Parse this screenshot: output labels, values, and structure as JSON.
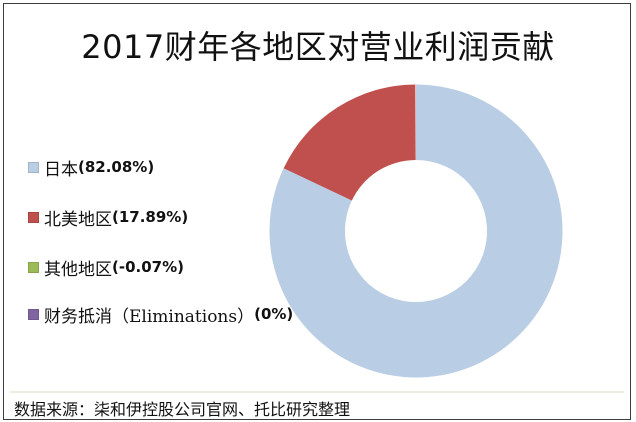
{
  "title": "2017财年各地区对营业利润贡献",
  "source_note": "数据来源：柒和伊控股公司官网、托比研究整理",
  "legend": {
    "items": [
      {
        "name": "日本",
        "pct": "(82.08%)",
        "color": "#B9CDE5"
      },
      {
        "name": "北美地区",
        "pct": "(17.89%)",
        "color": "#C0504D"
      },
      {
        "name": "其他地区",
        "pct": "(-0.07%)",
        "color": "#9BBB59"
      },
      {
        "name": "财务抵消（Eliminations）",
        "pct": "(0%)",
        "color": "#8064A2"
      }
    ]
  },
  "chart_data": {
    "type": "pie",
    "subtype": "donut",
    "title": "2017财年各地区对营业利润贡献",
    "categories": [
      "日本",
      "北美地区",
      "其他地区",
      "财务抵消（Eliminations）"
    ],
    "values": [
      82.08,
      17.89,
      -0.07,
      0
    ],
    "unit": "%",
    "colors": [
      "#B9CDE5",
      "#C0504D",
      "#9BBB59",
      "#8064A2"
    ],
    "hole_ratio": 0.485,
    "start_angle_deg": 0,
    "direction": "clockwise",
    "legend_position": "left",
    "grid": false
  }
}
